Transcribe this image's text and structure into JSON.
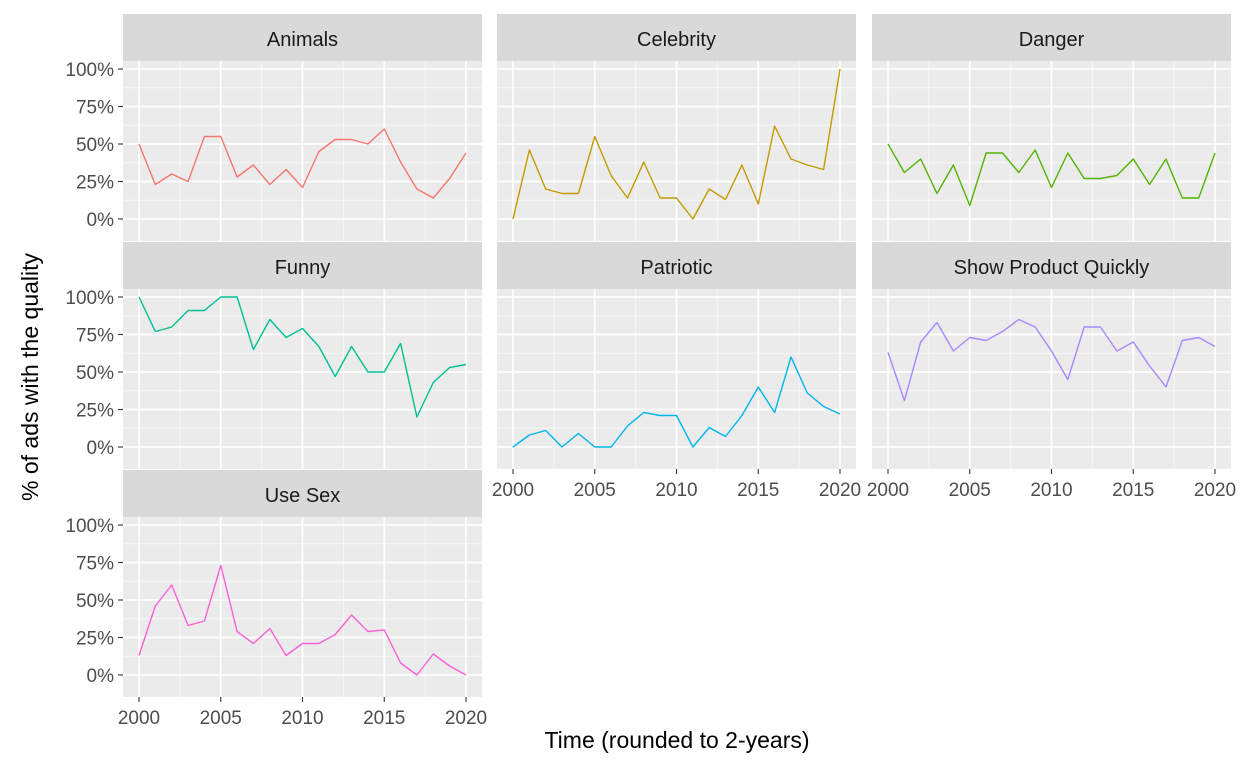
{
  "chart_data": {
    "type": "line",
    "layout": "facet-wrap",
    "xlabel": "Time (rounded to 2-years)",
    "ylabel": "% of ads with the quality",
    "xlim": [
      2000,
      2020
    ],
    "ylim": [
      0,
      1
    ],
    "x_ticks": [
      "2000",
      "2005",
      "2010",
      "2015",
      "2020"
    ],
    "y_ticks": [
      "0%",
      "25%",
      "50%",
      "75%",
      "100%"
    ],
    "x": [
      2000,
      2001,
      2002,
      2003,
      2004,
      2005,
      2006,
      2007,
      2008,
      2009,
      2010,
      2011,
      2012,
      2013,
      2014,
      2015,
      2016,
      2017,
      2018,
      2019,
      2020
    ],
    "grid": true,
    "legend": "none",
    "panels": [
      {
        "name": "Animals",
        "color": "#F8766D",
        "x": [
          2000,
          2001,
          2002,
          2003,
          2004,
          2005,
          2006,
          2007,
          2008,
          2009,
          2010,
          2011,
          2012,
          2013,
          2014,
          2015,
          2016,
          2017,
          2018,
          2019,
          2020
        ],
        "values": [
          0.5,
          0.23,
          0.3,
          0.25,
          0.55,
          0.55,
          0.28,
          0.36,
          0.23,
          0.33,
          0.21,
          0.45,
          0.53,
          0.53,
          0.5,
          0.6,
          0.38,
          0.2,
          0.14,
          0.27,
          0.44
        ]
      },
      {
        "name": "Celebrity",
        "color": "#C49A00",
        "x": [
          2000,
          2001,
          2002,
          2003,
          2004,
          2005,
          2006,
          2007,
          2008,
          2009,
          2010,
          2011,
          2012,
          2013,
          2014,
          2015,
          2016,
          2017,
          2018,
          2019,
          2020
        ],
        "values": [
          0.0,
          0.46,
          0.2,
          0.17,
          0.17,
          0.55,
          0.29,
          0.14,
          0.38,
          0.14,
          0.14,
          0.0,
          0.2,
          0.13,
          0.36,
          0.1,
          0.62,
          0.4,
          0.36,
          0.33,
          1.0
        ]
      },
      {
        "name": "Danger",
        "color": "#53B400",
        "x": [
          2000,
          2001,
          2002,
          2003,
          2004,
          2005,
          2006,
          2007,
          2008,
          2009,
          2010,
          2011,
          2012,
          2013,
          2014,
          2015,
          2016,
          2017,
          2018,
          2019,
          2020
        ],
        "values": [
          0.5,
          0.31,
          0.4,
          0.17,
          0.36,
          0.09,
          0.44,
          0.44,
          0.31,
          0.46,
          0.21,
          0.44,
          0.27,
          0.27,
          0.29,
          0.4,
          0.23,
          0.4,
          0.14,
          0.14,
          0.44
        ]
      },
      {
        "name": "Funny",
        "color": "#00C094",
        "x": [
          2000,
          2001,
          2002,
          2003,
          2004,
          2005,
          2006,
          2007,
          2008,
          2009,
          2010,
          2011,
          2012,
          2013,
          2014,
          2015,
          2016,
          2017,
          2018,
          2019,
          2020
        ],
        "values": [
          1.0,
          0.77,
          0.8,
          0.91,
          0.91,
          1.0,
          1.0,
          0.65,
          0.85,
          0.73,
          0.79,
          0.67,
          0.47,
          0.67,
          0.5,
          0.5,
          0.69,
          0.2,
          0.43,
          0.53,
          0.55
        ]
      },
      {
        "name": "Patriotic",
        "color": "#00B6EB",
        "x": [
          2000,
          2001,
          2002,
          2003,
          2004,
          2005,
          2006,
          2007,
          2008,
          2009,
          2010,
          2011,
          2012,
          2013,
          2014,
          2015,
          2016,
          2017,
          2018,
          2019,
          2020
        ],
        "values": [
          0.0,
          0.08,
          0.11,
          0.0,
          0.09,
          0.0,
          0.0,
          0.14,
          0.23,
          0.21,
          0.21,
          0.0,
          0.13,
          0.07,
          0.21,
          0.4,
          0.23,
          0.6,
          0.36,
          0.27,
          0.22
        ]
      },
      {
        "name": "Show Product Quickly",
        "color": "#A58AFF",
        "x": [
          2000,
          2001,
          2002,
          2003,
          2004,
          2005,
          2006,
          2007,
          2008,
          2009,
          2010,
          2011,
          2012,
          2013,
          2014,
          2015,
          2016,
          2017,
          2018,
          2019,
          2020
        ],
        "values": [
          0.63,
          0.31,
          0.7,
          0.83,
          0.64,
          0.73,
          0.71,
          0.77,
          0.85,
          0.8,
          0.64,
          0.45,
          0.8,
          0.8,
          0.64,
          0.7,
          0.54,
          0.4,
          0.71,
          0.73,
          0.67
        ]
      },
      {
        "name": "Use Sex",
        "color": "#FB61D7",
        "x": [
          2000,
          2001,
          2002,
          2003,
          2004,
          2005,
          2006,
          2007,
          2008,
          2009,
          2010,
          2011,
          2012,
          2013,
          2014,
          2015,
          2016,
          2017,
          2018,
          2019,
          2020
        ],
        "values": [
          0.13,
          0.46,
          0.6,
          0.33,
          0.36,
          0.73,
          0.29,
          0.21,
          0.31,
          0.13,
          0.21,
          0.21,
          0.27,
          0.4,
          0.29,
          0.3,
          0.08,
          0.0,
          0.14,
          0.06,
          0.0
        ]
      }
    ]
  },
  "colors": {
    "panel_background": "#EBEBEB",
    "strip_background": "#D9D9D9",
    "grid_major": "#FFFFFF",
    "tick_text": "#4D4D4D"
  }
}
